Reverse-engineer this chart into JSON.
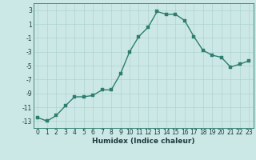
{
  "x": [
    0,
    1,
    2,
    3,
    4,
    5,
    6,
    7,
    8,
    9,
    10,
    11,
    12,
    13,
    14,
    15,
    16,
    17,
    18,
    19,
    20,
    21,
    22,
    23
  ],
  "y": [
    -12.5,
    -13.0,
    -12.2,
    -10.8,
    -9.5,
    -9.5,
    -9.3,
    -8.5,
    -8.5,
    -6.2,
    -3.0,
    -0.8,
    0.5,
    2.8,
    2.4,
    2.4,
    1.5,
    -0.8,
    -2.8,
    -3.5,
    -3.8,
    -5.2,
    -4.8,
    -4.3
  ],
  "xlabel": "Humidex (Indice chaleur)",
  "xlim": [
    -0.5,
    23.5
  ],
  "ylim": [
    -14,
    4
  ],
  "yticks": [
    3,
    1,
    -1,
    -3,
    -5,
    -7,
    -9,
    -11,
    -13
  ],
  "xticks": [
    0,
    1,
    2,
    3,
    4,
    5,
    6,
    7,
    8,
    9,
    10,
    11,
    12,
    13,
    14,
    15,
    16,
    17,
    18,
    19,
    20,
    21,
    22,
    23
  ],
  "line_color": "#2e7d6e",
  "marker_color": "#2e7d6e",
  "bg_color": "#cce8e6",
  "grid_color": "#aed4d1",
  "tick_fontsize": 5.5,
  "xlabel_fontsize": 6.5,
  "line_width": 1.0,
  "marker_size": 2.5
}
